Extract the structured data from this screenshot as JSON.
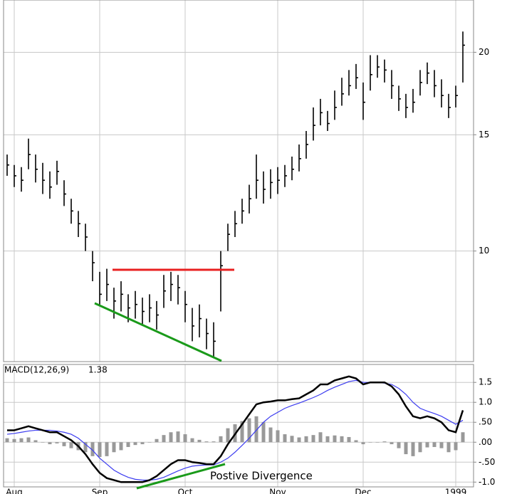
{
  "chart_data": [
    {
      "type": "ohlc",
      "ylog": true,
      "ylim": [
        6.8,
        24
      ],
      "yticks": [
        10,
        15,
        20
      ],
      "grid": true,
      "color": "#000000",
      "high": [
        14.0,
        13.5,
        13.4,
        14.8,
        14.0,
        13.6,
        13.2,
        13.7,
        12.8,
        12.0,
        11.5,
        11.0,
        10.0,
        9.3,
        9.4,
        8.8,
        9.0,
        8.6,
        8.7,
        8.5,
        8.6,
        8.4,
        9.2,
        9.3,
        9.2,
        8.7,
        8.2,
        8.3,
        7.9,
        7.8,
        10.0,
        11.0,
        11.5,
        12.0,
        12.6,
        14.0,
        13.2,
        13.3,
        13.4,
        13.5,
        13.9,
        14.5,
        15.2,
        16.5,
        17.0,
        16.3,
        17.5,
        18.3,
        18.8,
        19.2,
        18.0,
        19.8,
        19.8,
        19.5,
        18.8,
        17.8,
        17.3,
        17.6,
        18.8,
        19.3,
        18.8,
        18.2,
        17.3,
        17.8,
        21.5
      ],
      "low": [
        13.0,
        12.5,
        12.3,
        13.3,
        12.7,
        12.2,
        12.0,
        12.6,
        11.7,
        11.0,
        10.5,
        10.0,
        9.0,
        8.3,
        8.4,
        7.9,
        8.1,
        7.8,
        7.9,
        7.7,
        7.8,
        7.6,
        8.2,
        8.4,
        8.3,
        7.8,
        7.3,
        7.4,
        7.1,
        6.9,
        8.1,
        10.0,
        10.5,
        11.0,
        11.4,
        12.0,
        11.8,
        12.0,
        12.2,
        12.5,
        12.8,
        13.2,
        13.8,
        14.7,
        15.5,
        15.2,
        15.8,
        16.6,
        17.2,
        17.6,
        15.8,
        17.5,
        18.3,
        18.0,
        17.0,
        16.3,
        15.9,
        16.2,
        17.2,
        17.9,
        17.1,
        16.5,
        15.9,
        16.5,
        18.0
      ],
      "close": [
        13.5,
        13.0,
        12.8,
        14.0,
        13.3,
        12.8,
        12.5,
        13.2,
        12.2,
        11.5,
        11.0,
        10.5,
        9.6,
        8.6,
        8.9,
        8.4,
        8.6,
        8.2,
        8.3,
        8.1,
        8.2,
        8.0,
        8.7,
        8.9,
        8.8,
        8.3,
        7.7,
        7.9,
        7.5,
        7.3,
        9.5,
        10.6,
        11.0,
        11.5,
        12.0,
        12.8,
        12.4,
        12.7,
        12.8,
        13.0,
        13.3,
        13.8,
        14.5,
        15.5,
        16.2,
        15.6,
        16.5,
        17.3,
        17.8,
        18.3,
        16.8,
        18.5,
        19.0,
        18.8,
        17.8,
        17.0,
        16.5,
        16.8,
        18.0,
        18.6,
        17.8,
        17.2,
        16.5,
        17.2,
        20.5
      ]
    },
    {
      "type": "macd",
      "title": "MACD(12,26,9)",
      "value_label": 1.38,
      "annotations": [
        "Postive Divergence"
      ],
      "ylim": [
        -1.12,
        1.95
      ],
      "grid": true,
      "yticks": [
        1.5,
        {
          "value": 1,
          "label": "1.0"
        },
        {
          "value": 0.5,
          "label": ".50"
        },
        {
          "value": 0,
          "label": ".00"
        },
        {
          "value": -0.5,
          "label": "-.50"
        },
        {
          "value": -1,
          "label": "-1.0"
        }
      ],
      "categories": [
        null,
        "Aug",
        null,
        null,
        null,
        null,
        null,
        null,
        null,
        null,
        null,
        null,
        null,
        "Sep",
        null,
        null,
        null,
        null,
        null,
        null,
        null,
        null,
        null,
        null,
        null,
        "Oct",
        null,
        null,
        null,
        null,
        null,
        null,
        null,
        null,
        null,
        null,
        null,
        null,
        "Nov",
        null,
        null,
        null,
        null,
        null,
        null,
        null,
        null,
        null,
        null,
        null,
        "Dec",
        null,
        null,
        null,
        null,
        null,
        null,
        null,
        null,
        null,
        null,
        null,
        null,
        "1999",
        null
      ],
      "series": [
        {
          "color": "#000000",
          "values": [
            0.3,
            0.3,
            0.35,
            0.4,
            0.35,
            0.3,
            0.25,
            0.25,
            0.15,
            0.05,
            -0.1,
            -0.3,
            -0.55,
            -0.77,
            -0.9,
            -0.95,
            -1.0,
            -1.0,
            -1.0,
            -1.0,
            -0.95,
            -0.85,
            -0.7,
            -0.55,
            -0.45,
            -0.45,
            -0.5,
            -0.52,
            -0.55,
            -0.55,
            -0.35,
            -0.05,
            0.2,
            0.45,
            0.7,
            0.95,
            1.0,
            1.02,
            1.05,
            1.05,
            1.08,
            1.1,
            1.2,
            1.3,
            1.45,
            1.45,
            1.55,
            1.6,
            1.65,
            1.6,
            1.45,
            1.5,
            1.5,
            1.5,
            1.4,
            1.2,
            0.9,
            0.65,
            0.6,
            0.65,
            0.6,
            0.5,
            0.3,
            0.25,
            0.8
          ]
        },
        {
          "color": "#3c3cf0",
          "values": [
            0.2,
            0.22,
            0.25,
            0.28,
            0.3,
            0.3,
            0.3,
            0.28,
            0.25,
            0.2,
            0.1,
            -0.05,
            -0.2,
            -0.4,
            -0.55,
            -0.7,
            -0.8,
            -0.88,
            -0.93,
            -0.95,
            -0.95,
            -0.93,
            -0.88,
            -0.8,
            -0.72,
            -0.65,
            -0.6,
            -0.58,
            -0.57,
            -0.57,
            -0.5,
            -0.4,
            -0.25,
            -0.08,
            0.1,
            0.3,
            0.5,
            0.65,
            0.75,
            0.85,
            0.92,
            0.98,
            1.05,
            1.12,
            1.2,
            1.3,
            1.38,
            1.45,
            1.52,
            1.55,
            1.5,
            1.5,
            1.5,
            1.48,
            1.45,
            1.35,
            1.2,
            1.0,
            0.85,
            0.78,
            0.72,
            0.65,
            0.55,
            0.45,
            0.55
          ]
        }
      ],
      "histogram": {
        "color": "#999999",
        "values": [
          0.1,
          0.08,
          0.1,
          0.12,
          0.05,
          0,
          -0.05,
          -0.03,
          -0.1,
          -0.15,
          -0.2,
          -0.25,
          -0.35,
          -0.37,
          -0.35,
          -0.25,
          -0.2,
          -0.12,
          -0.07,
          -0.05,
          0,
          0.08,
          0.18,
          0.25,
          0.27,
          0.2,
          0.1,
          0.06,
          0.02,
          0.02,
          0.15,
          0.35,
          0.45,
          0.53,
          0.6,
          0.65,
          0.5,
          0.37,
          0.3,
          0.2,
          0.16,
          0.12,
          0.15,
          0.18,
          0.25,
          0.15,
          0.17,
          0.15,
          0.13,
          0.05,
          -0.05,
          0,
          0,
          0.02,
          -0.05,
          -0.15,
          -0.3,
          -0.35,
          -0.25,
          -0.13,
          -0.12,
          -0.15,
          -0.25,
          -0.2,
          0.25
        ]
      }
    }
  ]
}
